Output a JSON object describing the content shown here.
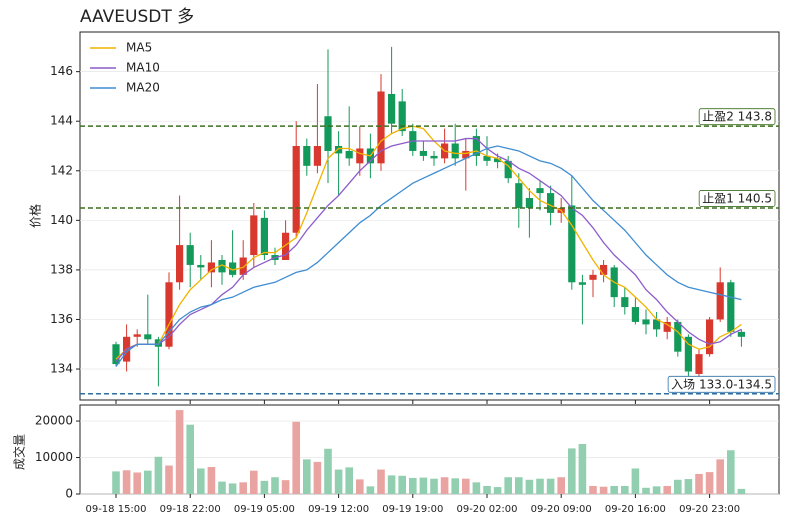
{
  "chart_data": [
    {
      "type": "candlestick",
      "title": "AAVEUSDT 多",
      "y_label": "价格",
      "categories": [
        "09-18 15:00",
        null,
        null,
        null,
        null,
        null,
        null,
        "09-18 22:00",
        null,
        null,
        null,
        null,
        null,
        null,
        "09-19 05:00",
        null,
        null,
        null,
        null,
        null,
        null,
        "09-19 12:00",
        null,
        null,
        null,
        null,
        null,
        null,
        "09-19 19:00",
        null,
        null,
        null,
        null,
        null,
        null,
        "09-20 02:00",
        null,
        null,
        null,
        null,
        null,
        null,
        "09-20 09:00",
        null,
        null,
        null,
        null,
        null,
        null,
        "09-20 16:00",
        null,
        null,
        null,
        null,
        null,
        null,
        "09-20 23:00",
        null,
        null,
        null
      ],
      "open": [
        135,
        134.3,
        135.3,
        135.4,
        135.2,
        134.9,
        137.5,
        139,
        138.2,
        137.9,
        138.4,
        138.3,
        137.8,
        138.6,
        140.1,
        138.6,
        138.4,
        139.5,
        143,
        142.2,
        144.2,
        143,
        142.8,
        142.3,
        142.9,
        142.3,
        145.1,
        144.8,
        143.6,
        142.8,
        142.6,
        142.5,
        143.1,
        142.5,
        143.4,
        142.6,
        142.5,
        142.4,
        141.5,
        140.9,
        141.3,
        141.1,
        140.3,
        140.6,
        137.5,
        137.6,
        137.8,
        138.1,
        136.9,
        136.5,
        136,
        136,
        135.5,
        135.9,
        135.3,
        133.8,
        134.6,
        136,
        137.5,
        135.5
      ],
      "high": [
        135.1,
        135.8,
        135.6,
        137,
        135.3,
        137.9,
        141,
        139.5,
        138.6,
        139.2,
        138.6,
        139.6,
        139.2,
        140.7,
        140.4,
        138.9,
        140,
        144,
        143.3,
        145.5,
        146.9,
        143.6,
        144.6,
        143.8,
        143.5,
        145.9,
        147,
        145.3,
        143.9,
        143.2,
        142.8,
        143.7,
        143.9,
        143.3,
        143.7,
        143.4,
        142.7,
        142.6,
        141.9,
        141.3,
        141.6,
        141.4,
        140.9,
        141.8,
        137.8,
        138,
        138.4,
        138.2,
        137.3,
        136.9,
        136.4,
        136.3,
        136.1,
        136,
        135.4,
        134.8,
        136.1,
        138.1,
        137.6,
        135.6
      ],
      "low": [
        134.1,
        133.9,
        134.9,
        135,
        133.3,
        134.8,
        137.2,
        137.3,
        137.6,
        137.3,
        137.4,
        137.7,
        137.6,
        138.1,
        138.4,
        138.2,
        138.4,
        139.3,
        141.8,
        141.9,
        141.5,
        141,
        142.2,
        141.8,
        141.7,
        142,
        143.5,
        143.4,
        142.6,
        142.4,
        142.2,
        142.3,
        142.2,
        141.2,
        142.2,
        142.2,
        142.1,
        141.5,
        139.7,
        139.3,
        140.4,
        139.8,
        139.9,
        137.2,
        135.8,
        136.9,
        137.5,
        136.5,
        136.2,
        135.8,
        135.4,
        135.3,
        135.2,
        134.5,
        133.7,
        133.7,
        134.5,
        135.9,
        135.3,
        134.9
      ],
      "close": [
        134.2,
        135.3,
        135.4,
        135.2,
        134.9,
        137.5,
        139,
        138.2,
        138.1,
        138.3,
        137.9,
        137.8,
        138.5,
        140.2,
        138.6,
        138.4,
        139.5,
        143,
        142.2,
        143,
        142.8,
        142.7,
        142.5,
        142.9,
        142.3,
        145.2,
        143.9,
        143.6,
        142.8,
        142.6,
        142.5,
        143.1,
        142.5,
        142.8,
        142.6,
        142.4,
        142.35,
        141.7,
        140.5,
        140.5,
        141.1,
        140.3,
        140.5,
        137.5,
        137.4,
        137.8,
        138.2,
        136.9,
        136.5,
        135.9,
        135.8,
        135.6,
        135.9,
        134.7,
        133.9,
        134.6,
        136,
        137.5,
        135.5,
        135.3
      ],
      "up_color": "#d9382e",
      "down_color": "#139a5b",
      "series": [
        {
          "name": "MA5",
          "color": "#f0b400",
          "values": [
            134.4,
            134.8,
            135,
            135,
            135,
            135.8,
            136.6,
            137.2,
            137.6,
            138,
            138.2,
            138,
            138.1,
            138.5,
            138.7,
            138.7,
            139,
            139.3,
            140.3,
            141.4,
            142.5,
            142.9,
            142.9,
            142.7,
            142.6,
            143.2,
            143.5,
            143.7,
            143.8,
            143.7,
            143.2,
            142.8,
            142.7,
            142.7,
            142.8,
            142.6,
            142.5,
            142.2,
            141.7,
            141.2,
            140.8,
            140.6,
            140.4,
            139.8,
            139.1,
            138.4,
            137.8,
            137.5,
            137.3,
            136.9,
            136.5,
            136,
            135.8,
            135.5,
            135,
            134.8,
            134.9,
            135.3,
            135.5,
            135.8
          ]
        },
        {
          "name": "MA10",
          "color": "#8c5ccc",
          "values": [
            134.3,
            134.8,
            135,
            135,
            135,
            135.3,
            135.8,
            136.2,
            136.4,
            136.6,
            137,
            137.3,
            137.8,
            138.1,
            138.3,
            138.5,
            138.6,
            139,
            139.6,
            140.1,
            140.6,
            141,
            141.5,
            142,
            142.4,
            142.8,
            143,
            143.1,
            143.2,
            143.2,
            143.2,
            143.2,
            143.2,
            143.3,
            143.3,
            142.9,
            142.6,
            142.4,
            142.1,
            141.9,
            141.6,
            141.3,
            141,
            140.5,
            140.2,
            139.7,
            139.1,
            138.6,
            138.2,
            137.8,
            137.2,
            136.8,
            136.3,
            135.9,
            135.5,
            135.2,
            135,
            135.1,
            135.4,
            135.6
          ]
        },
        {
          "name": "MA20",
          "color": "#3f8dd2",
          "values": [
            134.1,
            134.7,
            135,
            135,
            135,
            135.5,
            136,
            136.3,
            136.5,
            136.6,
            136.8,
            136.9,
            137.1,
            137.3,
            137.4,
            137.5,
            137.7,
            137.9,
            138,
            138.3,
            138.7,
            139.1,
            139.5,
            139.9,
            140.2,
            140.6,
            140.9,
            141.2,
            141.5,
            141.7,
            141.9,
            142.1,
            142.3,
            142.5,
            142.7,
            142.9,
            143,
            142.9,
            142.8,
            142.6,
            142.4,
            142.3,
            142.1,
            141.8,
            141.3,
            140.8,
            140.4,
            140,
            139.6,
            139.1,
            138.6,
            138.2,
            137.8,
            137.5,
            137.3,
            137.2,
            137.1,
            137,
            136.9,
            136.8
          ]
        }
      ],
      "levels": [
        {
          "value": 143.8,
          "label": "止盈2 143.8",
          "color": "#3b6e1e"
        },
        {
          "value": 140.5,
          "label": "止盈1 140.5",
          "color": "#3b6e1e"
        },
        {
          "value": 133.0,
          "label": "入场 133.0-134.5",
          "color": "#2b6fa6"
        }
      ],
      "ylim": [
        132.75,
        147.6
      ],
      "yticks": [
        134,
        136,
        138,
        140,
        142,
        144,
        146
      ],
      "grid": true,
      "legend": "upper left"
    },
    {
      "type": "bar",
      "y_label": "成交量",
      "values": [
        6200,
        6500,
        5900,
        6400,
        10200,
        7800,
        23000,
        19000,
        7000,
        7400,
        3400,
        2900,
        3200,
        6400,
        3600,
        4600,
        3800,
        19800,
        9500,
        8800,
        12400,
        6700,
        7300,
        4000,
        2100,
        6700,
        5100,
        5000,
        4400,
        4500,
        4200,
        4600,
        4300,
        4200,
        3200,
        2200,
        1900,
        4600,
        4600,
        3900,
        4200,
        4200,
        4600,
        12500,
        13700,
        2200,
        2000,
        2200,
        2200,
        7000,
        1700,
        2100,
        2200,
        3900,
        4100,
        5500,
        6000,
        9500,
        12000,
        1400
      ],
      "up_color": "#e9a3a0",
      "down_color": "#92cfb0",
      "ylim": [
        0,
        24400
      ],
      "yticks": [
        0,
        10000,
        20000
      ],
      "grid": true
    }
  ]
}
